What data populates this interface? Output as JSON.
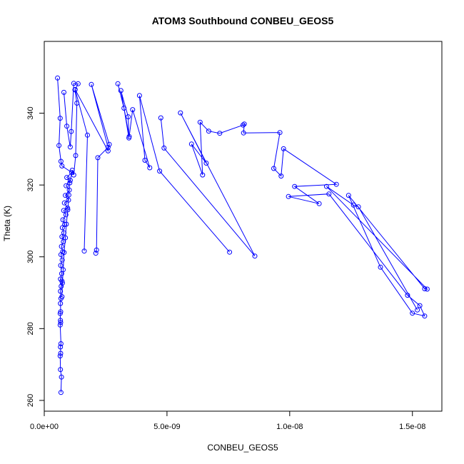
{
  "chart_data": {
    "type": "scatter",
    "title": "ATOM3 Southbound CONBEU_GEOS5",
    "xlabel": "CONBEU_GEOS5",
    "ylabel": "Theta (K)",
    "xlim": [
      0,
      1.62e-08
    ],
    "ylim": [
      257,
      360
    ],
    "x_ticks": [
      0,
      5e-09,
      1e-08,
      1.5e-08
    ],
    "x_tick_labels": [
      "0.0e+00",
      "5.0e-09",
      "1.0e-08",
      "1.5e-08"
    ],
    "y_ticks": [
      260,
      280,
      300,
      320,
      340
    ],
    "y_tick_labels": [
      "260",
      "280",
      "300",
      "320",
      "340"
    ],
    "grid": false,
    "legend": "none",
    "style": {
      "color": "#0000ff",
      "marker": "open-circle",
      "lines": true
    },
    "series": [
      {
        "points": [
          [
            6.8e-10,
            262.2
          ],
          [
            7e-10,
            266.5
          ],
          [
            6.6e-10,
            268.6
          ],
          [
            6.5e-10,
            272.4
          ],
          [
            6.7e-10,
            273.1
          ],
          [
            6.6e-10,
            274.9
          ],
          [
            6.8e-10,
            275.8
          ],
          [
            6.5e-10,
            281.0
          ],
          [
            6.7e-10,
            281.7
          ],
          [
            6.6e-10,
            282.3
          ],
          [
            6.5e-10,
            284.2
          ],
          [
            6.7e-10,
            284.7
          ],
          [
            6.6e-10,
            287.0
          ],
          [
            6.8e-10,
            288.4
          ],
          [
            6.6e-10,
            290.4
          ],
          [
            6.9e-10,
            291.8
          ],
          [
            7.2e-10,
            293.2
          ],
          [
            6.6e-10,
            293.8
          ],
          [
            7.1e-10,
            295.3
          ],
          [
            6.7e-10,
            297.6
          ],
          [
            7.3e-10,
            299.1
          ],
          [
            6.8e-10,
            300.6
          ],
          [
            7.5e-10,
            301.4
          ],
          [
            7e-10,
            302.9
          ],
          [
            7.8e-10,
            304.2
          ],
          [
            7.2e-10,
            305.6
          ],
          [
            8e-10,
            306.7
          ],
          [
            7.4e-10,
            308.1
          ],
          [
            8.3e-10,
            309.0
          ],
          [
            7.6e-10,
            310.3
          ],
          [
            8.8e-10,
            311.7
          ],
          [
            7.9e-10,
            312.9
          ],
          [
            9.5e-10,
            313.6
          ],
          [
            8.2e-10,
            315.0
          ],
          [
            9.9e-10,
            315.8
          ],
          [
            8.6e-10,
            317.1
          ],
          [
            1.02e-09,
            318.6
          ],
          [
            8.9e-10,
            319.8
          ],
          [
            1.06e-09,
            321.3
          ],
          [
            9.2e-10,
            322.1
          ],
          [
            1.12e-09,
            323.5
          ],
          [
            7.2e-10,
            325.3
          ],
          [
            6.8e-10,
            326.6
          ],
          [
            6e-10,
            331.0
          ],
          [
            6.5e-10,
            338.6
          ],
          [
            5.4e-10,
            349.8
          ]
        ]
      },
      {
        "points": [
          [
            8e-10,
            345.8
          ],
          [
            9.2e-10,
            336.4
          ],
          [
            1.06e-09,
            330.6
          ],
          [
            1.1e-09,
            334.9
          ],
          [
            1.2e-09,
            348.3
          ],
          [
            1.38e-09,
            348.2
          ],
          [
            1.25e-09,
            346.5
          ],
          [
            1.33e-09,
            342.8
          ],
          [
            1.28e-09,
            328.2
          ],
          [
            1.2e-09,
            322.8
          ],
          [
            1.14e-09,
            324.1
          ],
          [
            1.04e-09,
            320.6
          ],
          [
            1e-09,
            317.2
          ],
          [
            9.6e-10,
            313.1
          ],
          [
            9e-10,
            309.1
          ],
          [
            8.6e-10,
            305.3
          ],
          [
            8.1e-10,
            301.2
          ],
          [
            7.7e-10,
            296.4
          ],
          [
            7.4e-10,
            292.7
          ],
          [
            7.2e-10,
            288.9
          ]
        ]
      },
      {
        "points": [
          [
            1.63e-09,
            301.6
          ],
          [
            1.76e-09,
            333.9
          ],
          [
            1.26e-09,
            346.6
          ],
          [
            2.6e-09,
            329.5
          ],
          [
            2.65e-09,
            331.3
          ],
          [
            1.92e-09,
            348.0
          ],
          [
            2.6e-09,
            330.5
          ],
          [
            2.18e-09,
            327.6
          ],
          [
            2.13e-09,
            301.9
          ],
          [
            2.1e-09,
            301.0
          ]
        ]
      },
      {
        "points": [
          [
            3e-09,
            348.2
          ],
          [
            3.25e-09,
            341.4
          ],
          [
            3.45e-09,
            333.1
          ],
          [
            3.42e-09,
            339.0
          ],
          [
            3.12e-09,
            346.3
          ],
          [
            3.46e-09,
            333.5
          ],
          [
            3.6e-09,
            341.0
          ],
          [
            4.3e-09,
            324.8
          ],
          [
            4.1e-09,
            326.9
          ],
          [
            3.88e-09,
            344.9
          ],
          [
            4.7e-09,
            323.9
          ],
          [
            7.55e-09,
            301.3
          ]
        ]
      },
      {
        "points": [
          [
            4.75e-09,
            338.7
          ],
          [
            4.88e-09,
            330.3
          ],
          [
            8.58e-09,
            300.2
          ],
          [
            5.55e-09,
            340.1
          ],
          [
            6.6e-09,
            326.1
          ],
          [
            6e-09,
            331.4
          ],
          [
            6.45e-09,
            322.8
          ],
          [
            6.35e-09,
            337.5
          ],
          [
            6.7e-09,
            335.0
          ],
          [
            7.15e-09,
            334.4
          ],
          [
            8.1e-09,
            336.7
          ],
          [
            8.15e-09,
            337.0
          ],
          [
            8.12e-09,
            334.5
          ],
          [
            9.6e-09,
            334.6
          ],
          [
            9.35e-09,
            324.6
          ],
          [
            9.65e-09,
            322.5
          ],
          [
            9.75e-09,
            330.1
          ],
          [
            1.19e-08,
            320.2
          ],
          [
            1.02e-08,
            319.6
          ],
          [
            1.12e-08,
            314.8
          ],
          [
            9.95e-09,
            316.8
          ],
          [
            1.16e-08,
            317.5
          ],
          [
            1.48e-08,
            289.3
          ],
          [
            1.53e-08,
            286.4
          ],
          [
            1.55e-08,
            283.5
          ],
          [
            1.5e-08,
            284.3
          ],
          [
            1.37e-08,
            297.1
          ],
          [
            1.24e-08,
            317.1
          ],
          [
            1.55e-08,
            291.1
          ],
          [
            1.56e-08,
            291.0
          ],
          [
            1.15e-08,
            319.6
          ],
          [
            1.26e-08,
            314.4
          ],
          [
            1.28e-08,
            313.9
          ],
          [
            1.52e-08,
            285.2
          ]
        ]
      }
    ]
  }
}
